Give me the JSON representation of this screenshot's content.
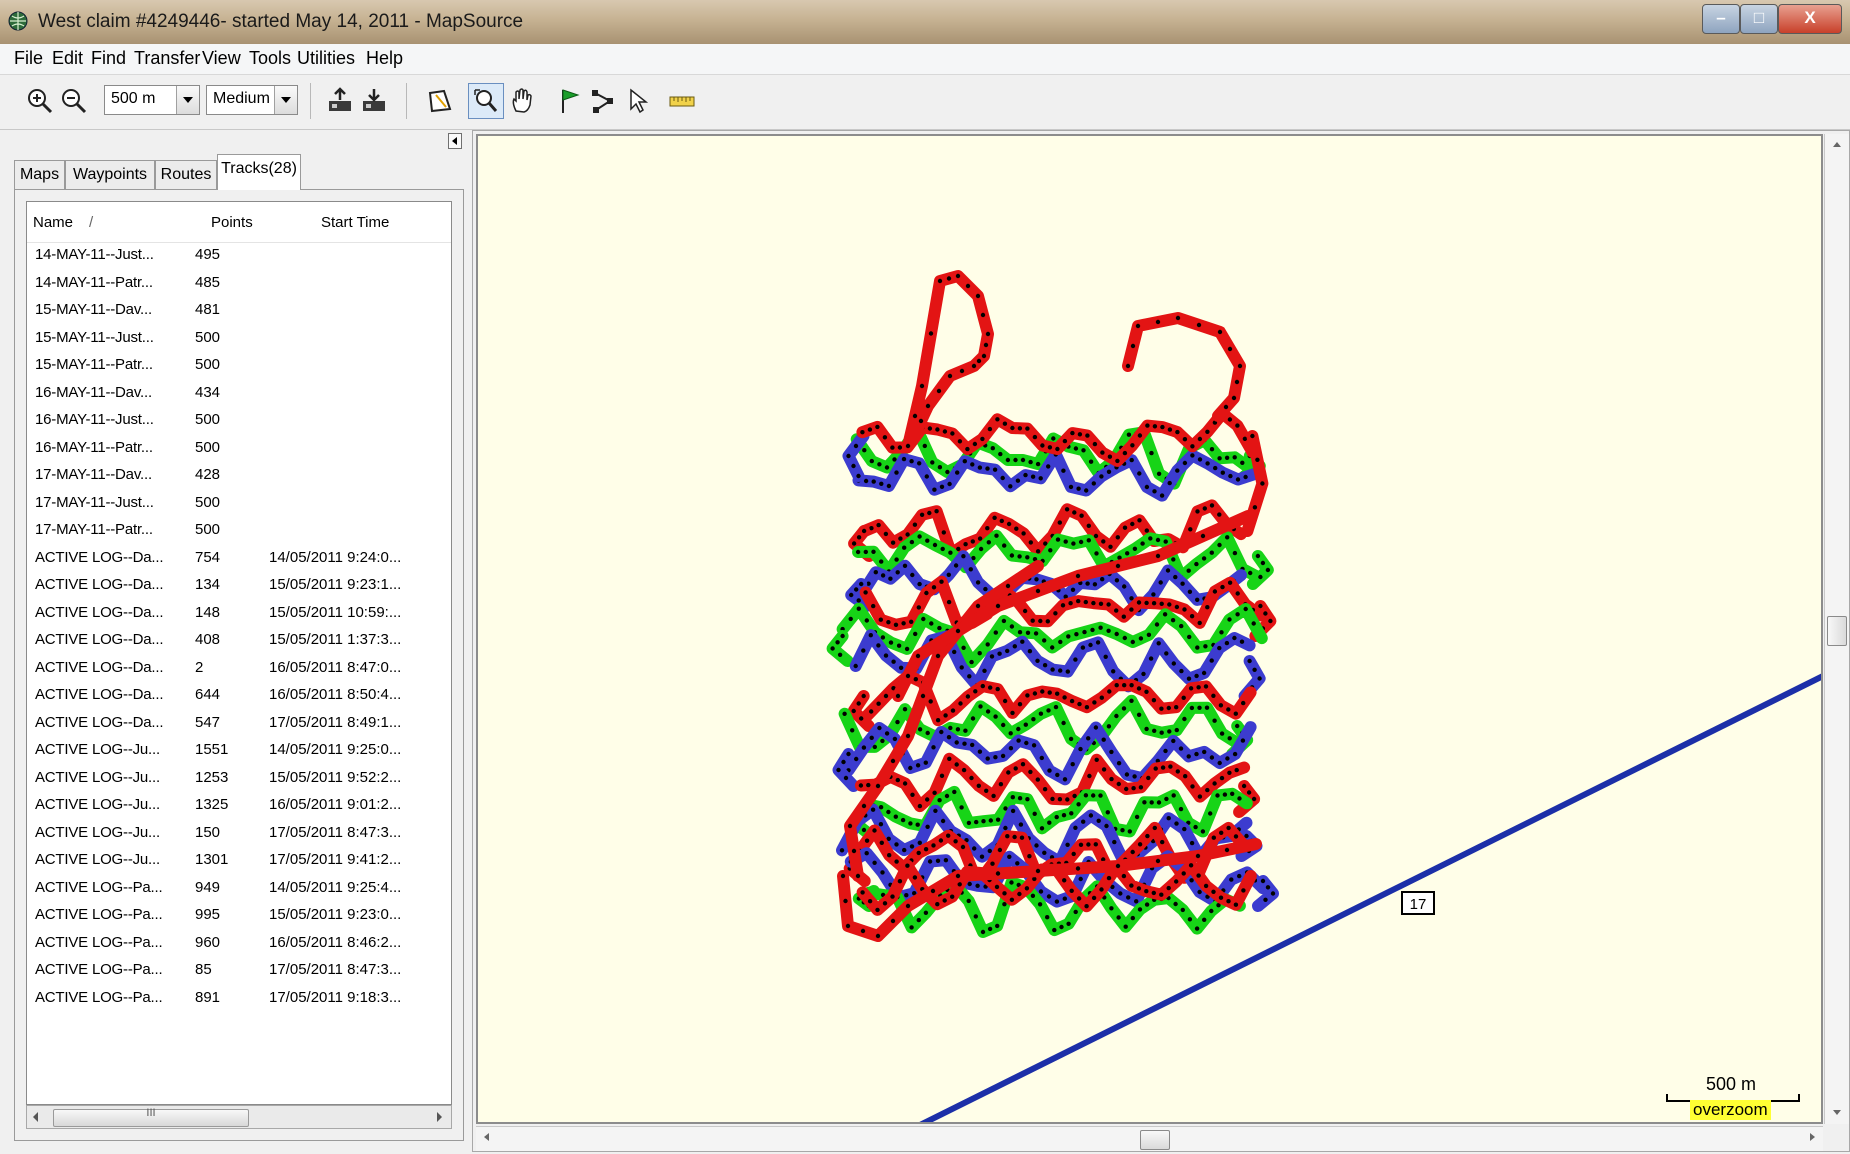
{
  "window": {
    "title": "West claim #4249446- started May 14, 2011 - MapSource"
  },
  "menu": [
    "File",
    "Edit",
    "Find",
    "Transfer",
    "View",
    "Tools",
    "Utilities",
    "Help"
  ],
  "toolbar": {
    "zoom_scale": "500 m",
    "detail_level": "Medium"
  },
  "panel": {
    "tabs": [
      {
        "label": "Maps",
        "active": false
      },
      {
        "label": "Waypoints",
        "active": false
      },
      {
        "label": "Routes",
        "active": false
      },
      {
        "label": "Tracks(28)",
        "active": true
      }
    ],
    "columns": {
      "name": "Name",
      "sort_indicator": "/",
      "points": "Points",
      "start_time": "Start Time"
    },
    "tracks": [
      {
        "name": "14-MAY-11--Just...",
        "points": "495",
        "start_time": ""
      },
      {
        "name": "14-MAY-11--Patr...",
        "points": "485",
        "start_time": ""
      },
      {
        "name": "15-MAY-11--Dav...",
        "points": "481",
        "start_time": ""
      },
      {
        "name": "15-MAY-11--Just...",
        "points": "500",
        "start_time": ""
      },
      {
        "name": "15-MAY-11--Patr...",
        "points": "500",
        "start_time": ""
      },
      {
        "name": "16-MAY-11--Dav...",
        "points": "434",
        "start_time": ""
      },
      {
        "name": "16-MAY-11--Just...",
        "points": "500",
        "start_time": ""
      },
      {
        "name": "16-MAY-11--Patr...",
        "points": "500",
        "start_time": ""
      },
      {
        "name": "17-MAY-11--Dav...",
        "points": "428",
        "start_time": ""
      },
      {
        "name": "17-MAY-11--Just...",
        "points": "500",
        "start_time": ""
      },
      {
        "name": "17-MAY-11--Patr...",
        "points": "500",
        "start_time": ""
      },
      {
        "name": "ACTIVE LOG--Da...",
        "points": "754",
        "start_time": "14/05/2011 9:24:0..."
      },
      {
        "name": "ACTIVE LOG--Da...",
        "points": "134",
        "start_time": "15/05/2011 9:23:1..."
      },
      {
        "name": "ACTIVE LOG--Da...",
        "points": "148",
        "start_time": "15/05/2011 10:59:..."
      },
      {
        "name": "ACTIVE LOG--Da...",
        "points": "408",
        "start_time": "15/05/2011 1:37:3..."
      },
      {
        "name": "ACTIVE LOG--Da...",
        "points": "2",
        "start_time": "16/05/2011 8:47:0..."
      },
      {
        "name": "ACTIVE LOG--Da...",
        "points": "644",
        "start_time": "16/05/2011 8:50:4..."
      },
      {
        "name": "ACTIVE LOG--Da...",
        "points": "547",
        "start_time": "17/05/2011 8:49:1..."
      },
      {
        "name": "ACTIVE LOG--Ju...",
        "points": "1551",
        "start_time": "14/05/2011 9:25:0..."
      },
      {
        "name": "ACTIVE LOG--Ju...",
        "points": "1253",
        "start_time": "15/05/2011 9:52:2..."
      },
      {
        "name": "ACTIVE LOG--Ju...",
        "points": "1325",
        "start_time": "16/05/2011 9:01:2..."
      },
      {
        "name": "ACTIVE LOG--Ju...",
        "points": "150",
        "start_time": "17/05/2011 8:47:3..."
      },
      {
        "name": "ACTIVE LOG--Ju...",
        "points": "1301",
        "start_time": "17/05/2011 9:41:2..."
      },
      {
        "name": "ACTIVE LOG--Pa...",
        "points": "949",
        "start_time": "14/05/2011 9:25:4..."
      },
      {
        "name": "ACTIVE LOG--Pa...",
        "points": "995",
        "start_time": "15/05/2011 9:23:0..."
      },
      {
        "name": "ACTIVE LOG--Pa...",
        "points": "960",
        "start_time": "16/05/2011 8:46:2..."
      },
      {
        "name": "ACTIVE LOG--Pa...",
        "points": "85",
        "start_time": "17/05/2011 8:47:3..."
      },
      {
        "name": "ACTIVE LOG--Pa...",
        "points": "891",
        "start_time": "17/05/2011 9:18:3..."
      }
    ],
    "scroll_grip": "III"
  },
  "map": {
    "road_label": "17",
    "scale_label": "500 m",
    "overzoom_label": "overzoom",
    "colors": {
      "background": "#fffee8",
      "road": "#1c2fa8",
      "track_red": "#e31414",
      "track_green": "#17d417",
      "track_blue": "#3c3ccf",
      "track_points": "#000000"
    }
  },
  "icons": [
    "app-globe-icon",
    "zoom-in-icon",
    "zoom-out-icon",
    "receive-from-device-icon",
    "send-to-device-icon",
    "map-select-icon",
    "zoom-tool-icon",
    "hand-pan-icon",
    "waypoint-flag-icon",
    "route-tool-icon",
    "selection-arrow-icon",
    "distance-ruler-icon"
  ]
}
